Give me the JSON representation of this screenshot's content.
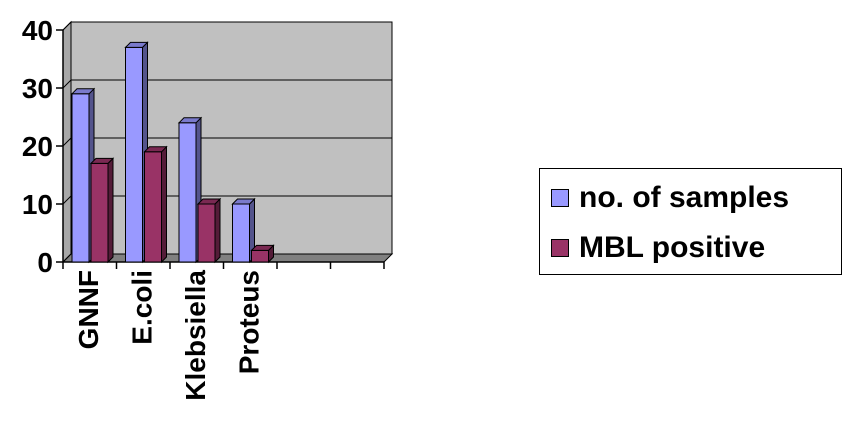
{
  "chart_data": {
    "type": "bar",
    "categories": [
      "GNNF",
      "E.coli",
      "Klebsiella",
      "Proteus",
      "",
      ""
    ],
    "series": [
      {
        "name": "no. of samples",
        "values": [
          29,
          37,
          24,
          10,
          null,
          null
        ],
        "color": "#9999ff"
      },
      {
        "name": "MBL positive",
        "values": [
          17,
          19,
          10,
          2,
          null,
          null
        ],
        "color": "#993366"
      }
    ],
    "ylim": [
      0,
      40
    ],
    "yticks": [
      0,
      10,
      20,
      30,
      40
    ],
    "grid": true,
    "plot_background": "#c0c0c0",
    "legend_position": "right",
    "style": "3d-column",
    "title": "",
    "xlabel": "",
    "ylabel": ""
  }
}
